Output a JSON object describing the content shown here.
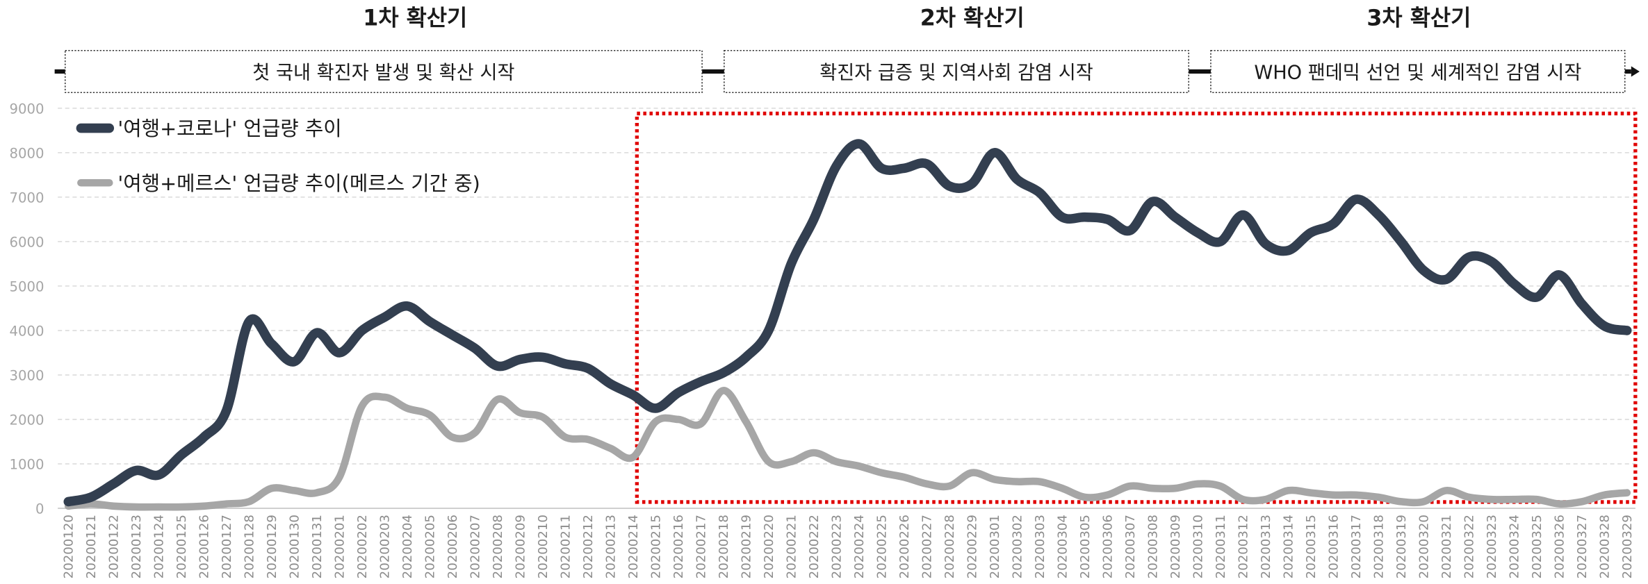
{
  "chart_data": {
    "type": "line",
    "categories": [
      "20200120",
      "20200121",
      "20200122",
      "20200123",
      "20200124",
      "20200125",
      "20200126",
      "20200127",
      "20200128",
      "20200129",
      "20200130",
      "20200131",
      "20200201",
      "20200202",
      "20200203",
      "20200204",
      "20200205",
      "20200206",
      "20200207",
      "20200208",
      "20200209",
      "20200210",
      "20200211",
      "20200212",
      "20200213",
      "20200214",
      "20200215",
      "20200216",
      "20200217",
      "20200218",
      "20200219",
      "20200220",
      "20200221",
      "20200222",
      "20200223",
      "20200224",
      "20200225",
      "20200226",
      "20200227",
      "20200228",
      "20200229",
      "20200301",
      "20200302",
      "20200303",
      "20200304",
      "20200305",
      "20200306",
      "20200307",
      "20200308",
      "20200309",
      "20200310",
      "20200311",
      "20200312",
      "20200313",
      "20200314",
      "20200315",
      "20200316",
      "20200317",
      "20200318",
      "20200319",
      "20200320",
      "20200321",
      "20200322",
      "20200323",
      "20200324",
      "20200325",
      "20200326",
      "20200327",
      "20200328",
      "20200329"
    ],
    "series": [
      {
        "name": "'여행+코로나' 언급량 추이",
        "color": "#333f50",
        "values": [
          150,
          250,
          550,
          850,
          750,
          1200,
          1600,
          2200,
          4200,
          3700,
          3300,
          3950,
          3500,
          4000,
          4300,
          4550,
          4200,
          3900,
          3600,
          3200,
          3350,
          3400,
          3250,
          3150,
          2800,
          2550,
          2250,
          2600,
          2850,
          3050,
          3400,
          4000,
          5500,
          6500,
          7700,
          8200,
          7650,
          7650,
          7750,
          7250,
          7300,
          8000,
          7400,
          7100,
          6550,
          6550,
          6500,
          6250,
          6900,
          6550,
          6200,
          6000,
          6600,
          5950,
          5800,
          6200,
          6400,
          6950,
          6600,
          6000,
          5350,
          5150,
          5650,
          5550,
          5050,
          4750,
          5250,
          4600,
          4100,
          4000
        ]
      },
      {
        "name": "'여행+메르스' 언급량 추이(메르스 기간 중)",
        "color": "#a6a6a6",
        "values": [
          50,
          100,
          50,
          30,
          30,
          30,
          50,
          100,
          150,
          450,
          400,
          350,
          700,
          2300,
          2500,
          2250,
          2100,
          1600,
          1700,
          2450,
          2150,
          2050,
          1600,
          1550,
          1350,
          1150,
          1950,
          2000,
          1900,
          2650,
          1950,
          1050,
          1050,
          1250,
          1050,
          950,
          800,
          700,
          550,
          500,
          800,
          650,
          600,
          600,
          450,
          250,
          300,
          500,
          450,
          450,
          550,
          500,
          200,
          200,
          400,
          350,
          300,
          300,
          250,
          150,
          150,
          400,
          250,
          200,
          200,
          200,
          100,
          150,
          300,
          350
        ]
      }
    ],
    "ylim": [
      0,
      9000
    ],
    "yticks": [
      0,
      1000,
      2000,
      3000,
      4000,
      5000,
      6000,
      7000,
      8000,
      9000
    ],
    "grid": true,
    "legend": "upper left",
    "phases": [
      "1차 확산기",
      "2차 확산기",
      "3차 확산기"
    ],
    "events": [
      "첫 국내 확진자 발생 및 확산 시작",
      "확진자 급증 및 지역사회 감염 시작",
      "WHO 팬데믹 선언 및 세계적인 감염 시작"
    ]
  }
}
